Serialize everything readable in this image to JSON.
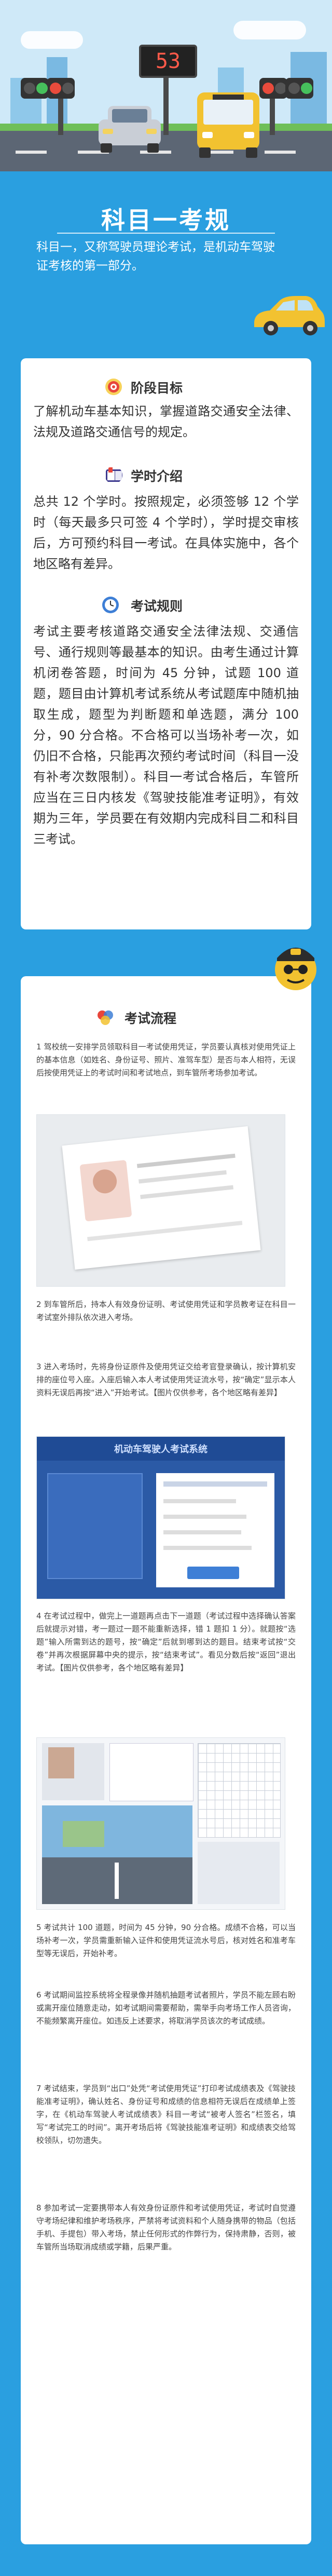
{
  "hero": {
    "countdown": "53",
    "icon_traffic_light": "traffic-light-icon",
    "icon_bus": "bus-icon",
    "icon_car": "car-icon"
  },
  "header": {
    "title": "科目一考规",
    "intro": "科目一，又称驾驶员理论考试，是机动车驾驶证考核的第一部分。"
  },
  "goal": {
    "title": "阶段目标",
    "text": "了解机动车基本知识，掌握道路交通安全法律、法规及道路交通信号的规定。"
  },
  "hours": {
    "title": "学时介绍",
    "text": "总共 12 个学时。按照规定，必须签够 12 个学时（每天最多只可签 4 个学时），学时提交审核后，方可预约科目一考试。在具体实施中，各个地区略有差异。"
  },
  "rules": {
    "title": "考试规则",
    "text": "考试主要考核道路交通安全法律法规、交通信号、通行规则等最基本的知识。由考生通过计算机闭卷答题，时间为 45 分钟，试题 100 道题，题目由计算机考试系统从考试题库中随机抽取生成，题型为判断题和单选题，满分 100 分，90 分合格。不合格可以当场补考一次，如仍旧不合格，只能再次预约考试时间（科目一没有补考次数限制）。科目一考试合格后，车管所应当在三日内核发《驾驶技能准考证明》，有效期为三年，学员要在有效期内完成科目二和科目三考试。"
  },
  "process": {
    "title": "考试流程",
    "steps": [
      "1 驾校统一安排学员领取科目一考试使用凭证，学员要认真核对使用凭证上的基本信息（如姓名、身份证号、照片、准驾车型）是否与本人相符，无误后按使用凭证上的考试时间和考试地点，到车管所考场参加考试。",
      "2 到车管所后，持本人有效身份证明、考试使用凭证和学员教考证在科目一考试室外排队依次进入考场。",
      "3 进入考场时，先将身份证原件及使用凭证交给考官登录确认，按计算机安排的座位号入座。入座后输入本人考试使用凭证流水号，按“确定”显示本人资料无误后再按“进入”开始考试。【图片仅供参考，各个地区略有差异】",
      "4 在考试过程中，做完上一道题再点击下一道题（考试过程中选择确认答案后就提示对错，考一题过一题不能重新选择，错 1 题扣 1 分）。就题按“选题”输入所需到达的题号，按“确定”后就到哪到达的题目。结束考试按“交卷”并再次根据屏幕中央的提示，按“结束考试”。看见分数后按“返回”退出考试。【图片仅供参考，各个地区略有差异】",
      "5 考试共计 100 道题，时间为 45 分钟，90 分合格。成绩不合格，可以当场补考一次，学员需重新输入证件和使用凭证流水号后，核对姓名和准考车型等无误后，开始补考。",
      "6 考试期间监控系统将全程录像并随机抽题考试者照片，学员不能左顾右盼或离开座位随意走动，如考试期间需要帮助，需举手向考场工作人员咨询，不能频繁离开座位。如违反上述要求，将取消学员该次的考试成绩。",
      "7 考试结束，学员到“出口”处凭“考试使用凭证”打印考试成绩表及《驾驶技能准考证明》，确认姓名、身份证号和成绩的信息相符无误后在成绩单上签字，在《机动车驾驶人考试成绩表》科目一考试“被考人签名”栏签名，填写“考试完工的时间”。离开考场后将《驾驶技能准考证明》和成绩表交给驾校领队，切勿遗失。",
      "8 参加考试一定要携带本人有效身份证原件和考试使用凭证，考试时自觉遵守考场纪律和维护考场秩序，严禁将考试资料和个人随身携带的物品（包括手机、手提包）带入考场，禁止任何形式的作弊行为，保持肃静，否则，被车管所当场取消成绩或学籍，后果严重。"
    ],
    "screenshot_title": "机动车驾驶人考试系统"
  },
  "colors": {
    "background": "#2a9fe0",
    "card": "#ffffff",
    "accent": "#f2c230"
  },
  "icons": [
    "target-icon",
    "book-icon",
    "clock-icon",
    "tricolor-circle-icon",
    "police-avatar-icon"
  ]
}
